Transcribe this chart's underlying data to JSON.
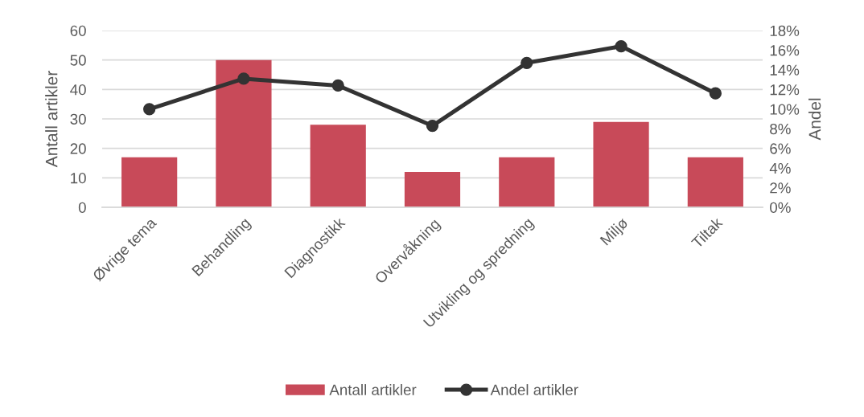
{
  "chart_data": {
    "type": "bar",
    "categories": [
      "Øvrige tema",
      "Behandling",
      "Diagnostikk",
      "Overvåkning",
      "Utvikling og spredning",
      "Miljø",
      "Tiltak"
    ],
    "series": [
      {
        "name": "Antall artikler",
        "color": "#c84a59",
        "values": [
          17,
          50,
          28,
          12,
          17,
          29,
          17
        ]
      },
      {
        "name": "Andel artikler",
        "type": "line",
        "axis": "y2",
        "color": "#333333",
        "values": [
          10.0,
          13.1,
          12.4,
          8.3,
          14.7,
          16.4,
          11.6
        ]
      }
    ],
    "ylabel": "Antall artikler",
    "y2label": "Andel",
    "ylim": [
      0,
      60
    ],
    "yticks": [
      0,
      10,
      20,
      30,
      40,
      50,
      60
    ],
    "y2lim": [
      0,
      18
    ],
    "y2ticks": [
      {
        "value": 0,
        "label": "0%"
      },
      {
        "value": 2,
        "label": "2%"
      },
      {
        "value": 4,
        "label": "4%"
      },
      {
        "value": 6,
        "label": "6%"
      },
      {
        "value": 8,
        "label": "8%"
      },
      {
        "value": 10,
        "label": "10%"
      },
      {
        "value": 12,
        "label": "12%"
      },
      {
        "value": 14,
        "label": "14%"
      },
      {
        "value": 16,
        "label": "16%"
      },
      {
        "value": 18,
        "label": "18%"
      }
    ],
    "grid": "y",
    "legend": "bottom",
    "marker": "circle",
    "line_style": "solid"
  }
}
